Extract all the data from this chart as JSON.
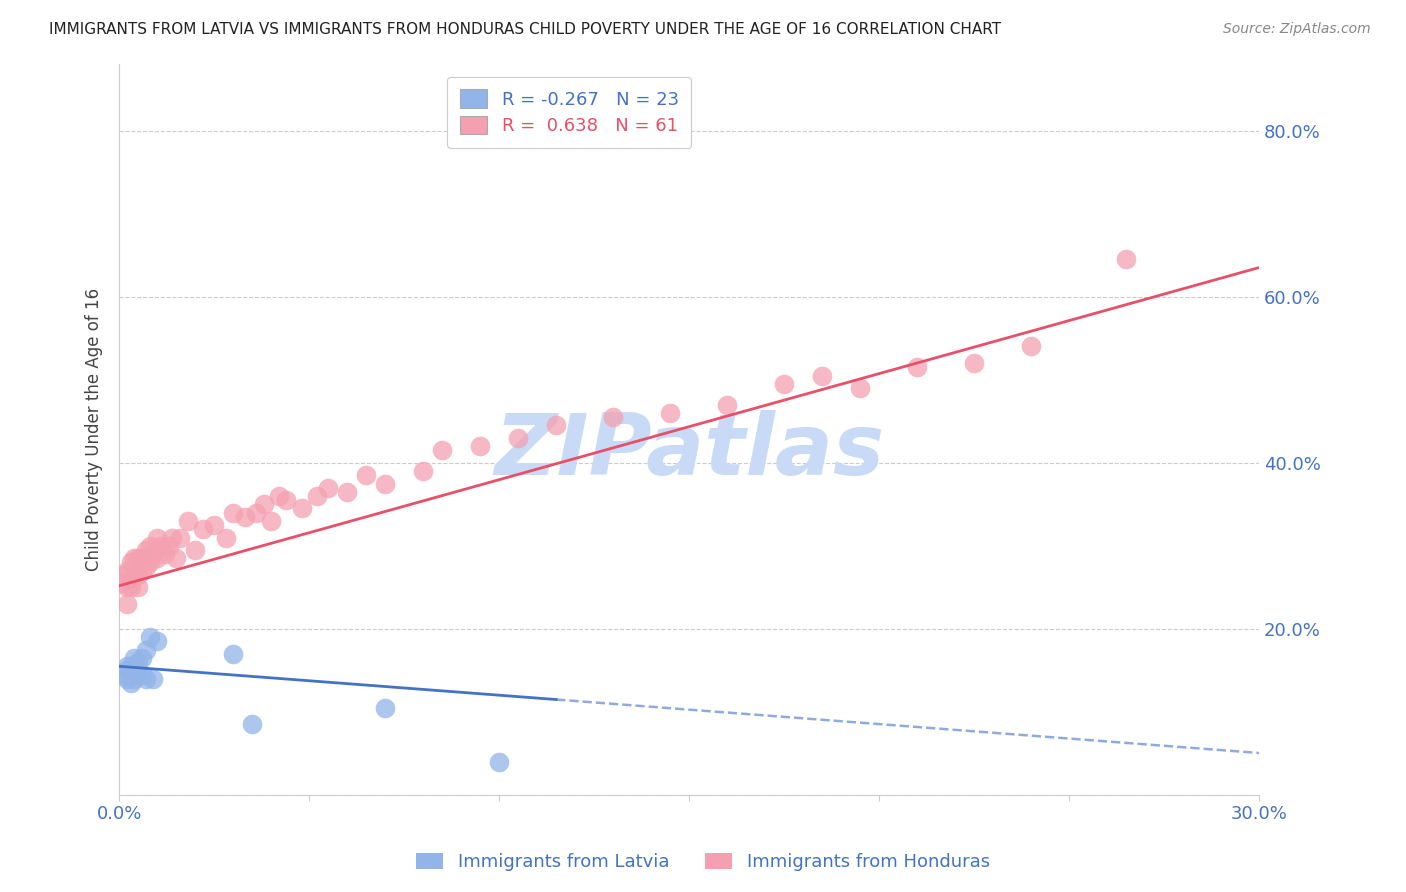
{
  "title": "IMMIGRANTS FROM LATVIA VS IMMIGRANTS FROM HONDURAS CHILD POVERTY UNDER THE AGE OF 16 CORRELATION CHART",
  "source": "Source: ZipAtlas.com",
  "ylabel": "Child Poverty Under the Age of 16",
  "xlim": [
    0.0,
    0.3
  ],
  "ylim": [
    0.0,
    0.88
  ],
  "xticks": [
    0.0,
    0.05,
    0.1,
    0.15,
    0.2,
    0.25,
    0.3
  ],
  "xticklabels": [
    "0.0%",
    "",
    "",
    "",
    "",
    "",
    "30.0%"
  ],
  "yticks": [
    0.0,
    0.2,
    0.4,
    0.6,
    0.8
  ],
  "yticklabels": [
    "",
    "20.0%",
    "40.0%",
    "60.0%",
    "80.0%"
  ],
  "latvia_R": -0.267,
  "latvia_N": 23,
  "honduras_R": 0.638,
  "honduras_N": 61,
  "latvia_color": "#92b4e8",
  "honduras_color": "#f4a0b0",
  "trend_latvia_color": "#4472c4",
  "trend_honduras_color": "#e8506a",
  "watermark_text": "ZIPatlas",
  "watermark_color": "#c8daf5",
  "axis_label_color": "#4472c4",
  "title_color": "#222222",
  "latvia_x": [
    0.001,
    0.002,
    0.002,
    0.002,
    0.003,
    0.003,
    0.003,
    0.004,
    0.004,
    0.004,
    0.005,
    0.005,
    0.006,
    0.006,
    0.007,
    0.007,
    0.008,
    0.009,
    0.01,
    0.03,
    0.035,
    0.07,
    0.1
  ],
  "latvia_y": [
    0.145,
    0.14,
    0.15,
    0.155,
    0.135,
    0.145,
    0.155,
    0.14,
    0.155,
    0.165,
    0.15,
    0.16,
    0.145,
    0.165,
    0.14,
    0.175,
    0.19,
    0.14,
    0.185,
    0.17,
    0.085,
    0.105,
    0.04
  ],
  "honduras_x": [
    0.001,
    0.001,
    0.002,
    0.002,
    0.002,
    0.003,
    0.003,
    0.003,
    0.004,
    0.004,
    0.005,
    0.005,
    0.005,
    0.006,
    0.006,
    0.007,
    0.007,
    0.008,
    0.008,
    0.009,
    0.01,
    0.01,
    0.011,
    0.012,
    0.013,
    0.014,
    0.015,
    0.016,
    0.018,
    0.02,
    0.022,
    0.025,
    0.028,
    0.03,
    0.033,
    0.036,
    0.038,
    0.04,
    0.042,
    0.044,
    0.048,
    0.052,
    0.055,
    0.06,
    0.065,
    0.07,
    0.08,
    0.085,
    0.095,
    0.105,
    0.115,
    0.13,
    0.145,
    0.16,
    0.175,
    0.185,
    0.195,
    0.21,
    0.225,
    0.24,
    0.265
  ],
  "honduras_y": [
    0.255,
    0.265,
    0.23,
    0.25,
    0.27,
    0.25,
    0.26,
    0.28,
    0.265,
    0.285,
    0.25,
    0.265,
    0.285,
    0.27,
    0.285,
    0.275,
    0.295,
    0.28,
    0.3,
    0.29,
    0.285,
    0.31,
    0.3,
    0.29,
    0.3,
    0.31,
    0.285,
    0.31,
    0.33,
    0.295,
    0.32,
    0.325,
    0.31,
    0.34,
    0.335,
    0.34,
    0.35,
    0.33,
    0.36,
    0.355,
    0.345,
    0.36,
    0.37,
    0.365,
    0.385,
    0.375,
    0.39,
    0.415,
    0.42,
    0.43,
    0.445,
    0.455,
    0.46,
    0.47,
    0.495,
    0.505,
    0.49,
    0.515,
    0.52,
    0.54,
    0.645
  ],
  "trend_honduras_x0": 0.0,
  "trend_honduras_y0": 0.252,
  "trend_honduras_x1": 0.3,
  "trend_honduras_y1": 0.635,
  "trend_latvia_x0": 0.0,
  "trend_latvia_y0": 0.155,
  "trend_latvia_x1": 0.115,
  "trend_latvia_y1": 0.115,
  "trend_latvia_dash_x0": 0.115,
  "trend_latvia_dash_x1": 0.3
}
